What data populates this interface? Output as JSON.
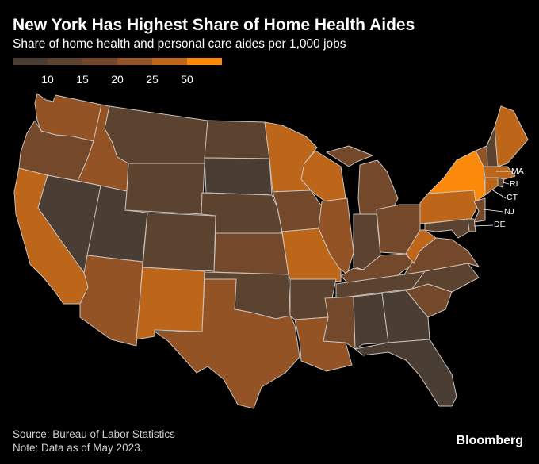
{
  "header": {
    "title": "New York Has Highest Share of Home Health Aides",
    "subtitle": "Share of home health and personal care aides per 1,000 jobs"
  },
  "legend": {
    "bins": [
      {
        "color": "#4a3d33"
      },
      {
        "color": "#5c4330"
      },
      {
        "color": "#74482a"
      },
      {
        "color": "#935325"
      },
      {
        "color": "#bd661a"
      },
      {
        "color": "#fb8a0a"
      }
    ],
    "labels": [
      "10",
      "15",
      "20",
      "25",
      "50"
    ]
  },
  "map": {
    "border_color": "#c9c0b8",
    "states": {
      "WA": "#935325",
      "OR": "#74482a",
      "CA": "#bd661a",
      "ID": "#935325",
      "NV": "#4a3d33",
      "UT": "#4a3d33",
      "AZ": "#935325",
      "MT": "#5c4330",
      "WY": "#5c4330",
      "CO": "#5c4330",
      "NM": "#bd661a",
      "ND": "#5c4330",
      "SD": "#4a3d33",
      "NE": "#5c4330",
      "KS": "#74482a",
      "OK": "#5c4330",
      "TX": "#935325",
      "MN": "#bd661a",
      "IA": "#74482a",
      "MO": "#bd661a",
      "AR": "#5c4330",
      "LA": "#935325",
      "WI": "#bd661a",
      "IL": "#935325",
      "MI": "#74482a",
      "IN": "#5c4330",
      "OH": "#74482a",
      "KY": "#74482a",
      "TN": "#5c4330",
      "MS": "#74482a",
      "AL": "#4a3d33",
      "GA": "#4a3d33",
      "FL": "#4a3d33",
      "SC": "#74482a",
      "NC": "#5c4330",
      "VA": "#74482a",
      "WV": "#bd661a",
      "PA": "#bd661a",
      "NY": "#fb8a0a",
      "VT": "#935325",
      "NH": "#5c4330",
      "ME": "#bd661a",
      "MA": "#bd661a",
      "RI": "#5c4330",
      "CT": "#bd661a",
      "NJ": "#74482a",
      "DE": "#5c4330",
      "MD": "#5c4330"
    },
    "callouts": [
      "MA",
      "RI",
      "CT",
      "NJ",
      "DE"
    ]
  },
  "footer": {
    "source": "Source: Bureau of Labor Statistics",
    "note": "Note: Data as of May 2023."
  },
  "brand": "Bloomberg"
}
